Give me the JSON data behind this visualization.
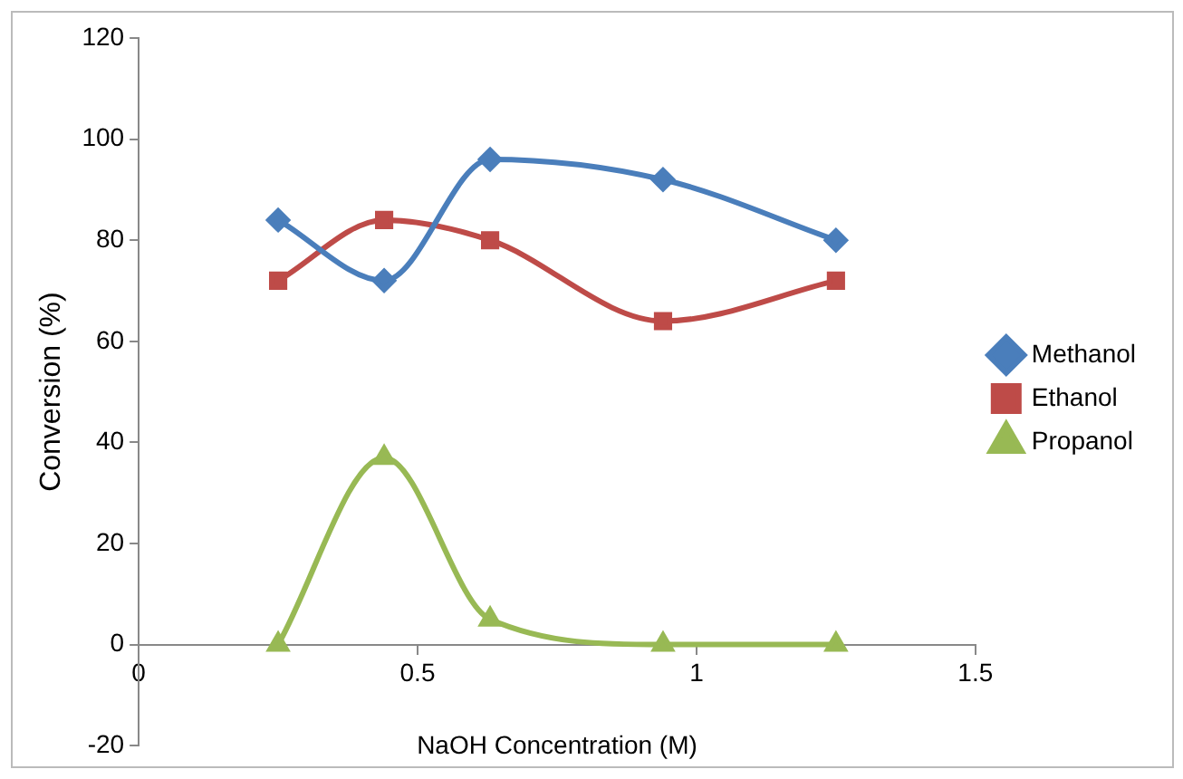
{
  "chart_data": {
    "type": "line",
    "xlabel": "NaOH Concentration (M)",
    "ylabel": "Conversion (%)",
    "x": [
      0.25,
      0.44,
      0.63,
      0.94,
      1.25
    ],
    "series": [
      {
        "name": "Methanol",
        "color": "#4a7ebb",
        "marker": "diamond",
        "values": [
          84,
          72,
          96,
          92,
          80
        ]
      },
      {
        "name": "Ethanol",
        "color": "#be4b48",
        "marker": "square",
        "values": [
          72,
          84,
          80,
          64,
          72
        ]
      },
      {
        "name": "Propanol",
        "color": "#98b954",
        "marker": "triangle",
        "values": [
          0,
          37,
          5,
          0,
          0
        ]
      }
    ],
    "xlim": [
      0,
      1.5
    ],
    "xticks": [
      0,
      0.5,
      1,
      1.5
    ],
    "ylim": [
      -20,
      120
    ],
    "yticks": [
      -20,
      0,
      20,
      40,
      60,
      80,
      100,
      120
    ],
    "grid": false,
    "legend": "right",
    "line_style": "solid"
  }
}
